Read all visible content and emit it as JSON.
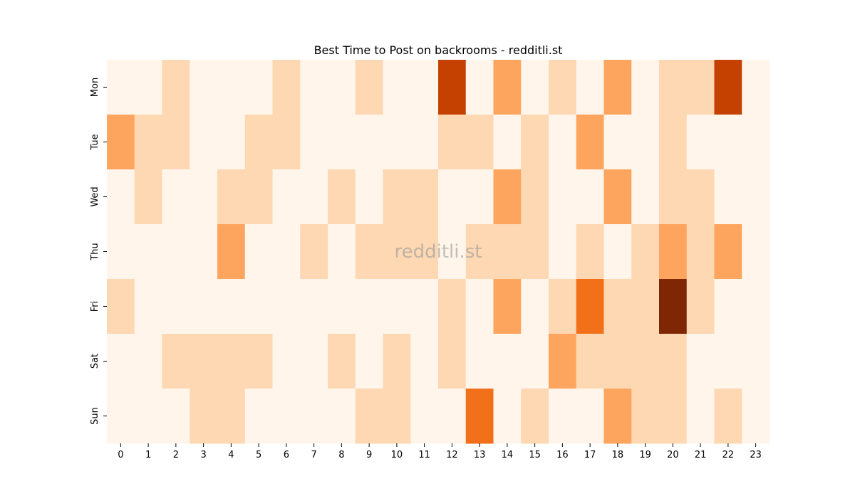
{
  "chart_data": {
    "type": "heatmap",
    "title": "Best Time to Post on backrooms - redditli.st",
    "x": [
      0,
      1,
      2,
      3,
      4,
      5,
      6,
      7,
      8,
      9,
      10,
      11,
      12,
      13,
      14,
      15,
      16,
      17,
      18,
      19,
      20,
      21,
      22,
      23
    ],
    "categories": [
      "Mon",
      "Tue",
      "Wed",
      "Thu",
      "Fri",
      "Sat",
      "Sun"
    ],
    "values": [
      [
        0,
        0,
        1,
        0,
        0,
        0,
        1,
        0,
        0,
        1,
        0,
        0,
        4,
        0,
        2,
        0,
        1,
        0,
        2,
        0,
        1,
        1,
        4,
        0
      ],
      [
        2,
        1,
        1,
        0,
        0,
        1,
        1,
        0,
        0,
        0,
        0,
        0,
        1,
        1,
        0,
        1,
        0,
        2,
        0,
        0,
        1,
        0,
        0,
        0
      ],
      [
        0,
        1,
        0,
        0,
        1,
        1,
        0,
        0,
        1,
        0,
        1,
        1,
        0,
        0,
        2,
        1,
        0,
        0,
        2,
        0,
        1,
        1,
        0,
        0
      ],
      [
        0,
        0,
        0,
        0,
        2,
        0,
        0,
        1,
        0,
        1,
        1,
        1,
        0,
        1,
        1,
        1,
        0,
        1,
        0,
        1,
        2,
        1,
        2,
        0
      ],
      [
        1,
        0,
        0,
        0,
        0,
        0,
        0,
        0,
        0,
        0,
        0,
        0,
        1,
        0,
        2,
        0,
        1,
        3,
        1,
        1,
        5,
        1,
        0,
        0
      ],
      [
        0,
        0,
        1,
        1,
        1,
        1,
        0,
        0,
        1,
        0,
        1,
        0,
        1,
        0,
        0,
        0,
        2,
        1,
        1,
        1,
        1,
        0,
        0,
        0
      ],
      [
        0,
        0,
        0,
        1,
        1,
        0,
        0,
        0,
        0,
        1,
        1,
        0,
        0,
        3,
        0,
        1,
        0,
        0,
        2,
        1,
        1,
        0,
        1,
        0
      ]
    ],
    "vlim": [
      0,
      5
    ],
    "colormap": [
      "#fff5eb",
      "#fdd8b3",
      "#fda55e",
      "#f3701b",
      "#c54102",
      "#7f2704"
    ],
    "watermark": "redditli.st"
  }
}
